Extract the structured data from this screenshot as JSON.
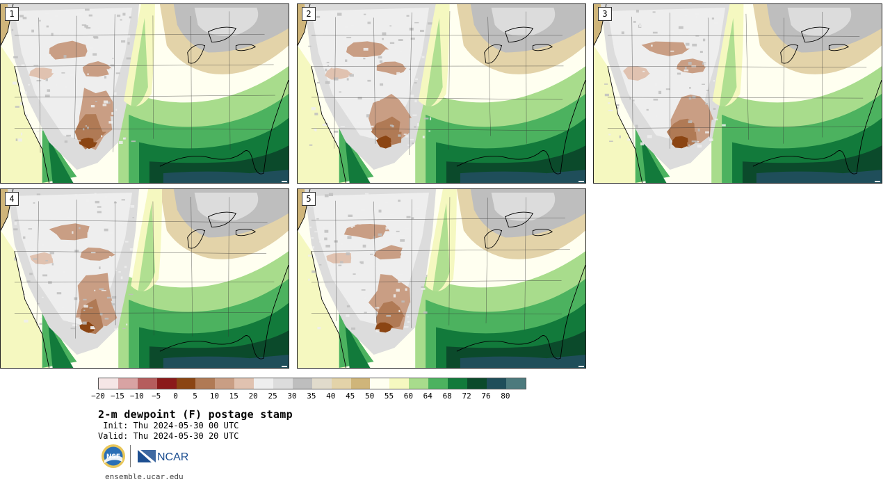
{
  "panels": [
    {
      "label": "1",
      "seed": 1
    },
    {
      "label": "2",
      "seed": 2
    },
    {
      "label": "3",
      "seed": 3
    },
    {
      "label": "4",
      "seed": 4
    },
    {
      "label": "5",
      "seed": 5
    }
  ],
  "colorbar": {
    "labels": [
      "−20",
      "−15",
      "−10",
      "−5",
      "0",
      "5",
      "10",
      "15",
      "20",
      "25",
      "30",
      "35",
      "40",
      "45",
      "50",
      "55",
      "60",
      "64",
      "68",
      "72",
      "76",
      "80"
    ],
    "colors": [
      "#f5e6e6",
      "#d8a3a3",
      "#b55d5d",
      "#8b1a1a",
      "#8b4513",
      "#b07a55",
      "#c99e84",
      "#e0c2b0",
      "#eeeeee",
      "#dcdcdc",
      "#bebebe",
      "#e1dbcc",
      "#e3d3a9",
      "#cfb57a",
      "#fffff0",
      "#f5f8c0",
      "#a8dc8c",
      "#4cb25f",
      "#127a3b",
      "#0b4a2b",
      "#1f4e5a",
      "#4c7a7d"
    ]
  },
  "header": {
    "title": "2-m dewpoint (F) postage stamp",
    "init": " Init: Thu 2024-05-30 00 UTC",
    "valid": "Valid: Thu 2024-05-30 20 UTC"
  },
  "logos": {
    "nsf": "NSF",
    "ncar": "NCAR"
  },
  "footer": {
    "site": "ensemble.ucar.edu"
  }
}
